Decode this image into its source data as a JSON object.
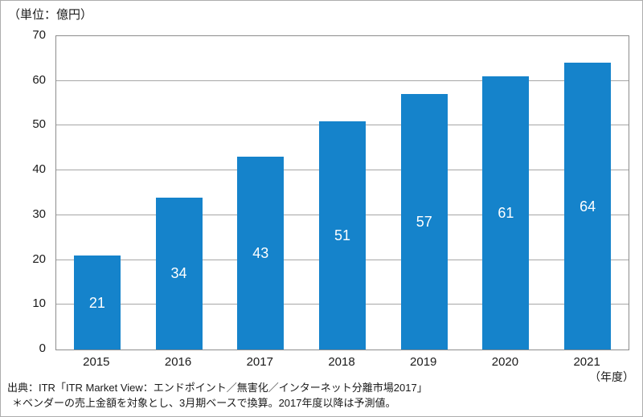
{
  "unit_label": "（単位：億円）",
  "x_axis_unit_label": "（年度）",
  "chart_data": {
    "type": "bar",
    "title": "",
    "unit": "億円",
    "categories": [
      "2015",
      "2016",
      "2017",
      "2018",
      "2019",
      "2020",
      "2021"
    ],
    "values": [
      21,
      34,
      43,
      51,
      57,
      61,
      64
    ],
    "xlabel": "年度",
    "ylabel": "億円",
    "ylim": [
      0,
      70
    ],
    "yticks": [
      0,
      10,
      20,
      30,
      40,
      50,
      60,
      70
    ],
    "grid": true,
    "legend": false,
    "bar_color": "#1583cb",
    "value_label_color": "#ffffff",
    "gridline_color": "#a6a6a6",
    "axis_border_color": "#8c8c8c"
  },
  "footer": {
    "source": "出典：ITR「ITR Market View：エンドポイント／無害化／インターネット分離市場2017」",
    "note": "＊ベンダーの売上金額を対象とし、3月期ベースで換算。2017年度以降は予測値。"
  }
}
